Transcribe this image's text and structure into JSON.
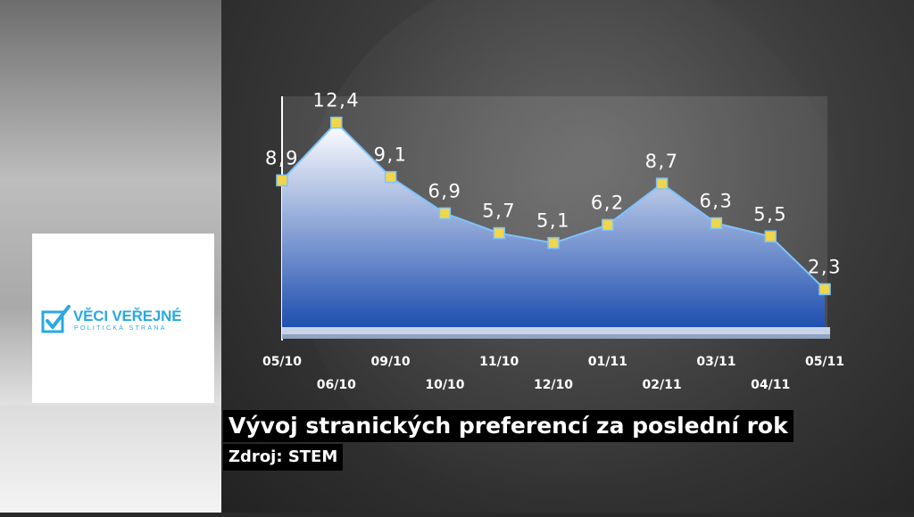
{
  "logo": {
    "title": "VĚCI VEŘEJNÉ",
    "subtitle": "POLITICKÁ STRANA",
    "color": "#29a9e1"
  },
  "caption": {
    "title": "Vývoj stranických preferencí  za poslední rok",
    "source": "Zdroj: STEM"
  },
  "chart_data": {
    "type": "area",
    "categories": [
      "05/10",
      "06/10",
      "09/10",
      "10/10",
      "11/10",
      "12/10",
      "01/11",
      "02/11",
      "03/11",
      "04/11",
      "05/11"
    ],
    "values": [
      8.9,
      12.4,
      9.1,
      6.9,
      5.7,
      5.1,
      6.2,
      8.7,
      6.3,
      5.5,
      2.3
    ],
    "value_labels": [
      "8,9",
      "12,4",
      "9,1",
      "6,9",
      "5,7",
      "5,1",
      "6,2",
      "8,7",
      "6,3",
      "5,5",
      "2,3"
    ],
    "title": "Vývoj stranických preferencí  za poslední rok",
    "xlabel": "",
    "ylabel": "",
    "ylim": [
      0,
      14
    ],
    "grid": false,
    "legend": "none",
    "colors": {
      "fill_top": "#ffffff",
      "fill_bottom": "#1f4fb0",
      "line": "#7ec3ff",
      "marker": "#f0d64a"
    }
  }
}
